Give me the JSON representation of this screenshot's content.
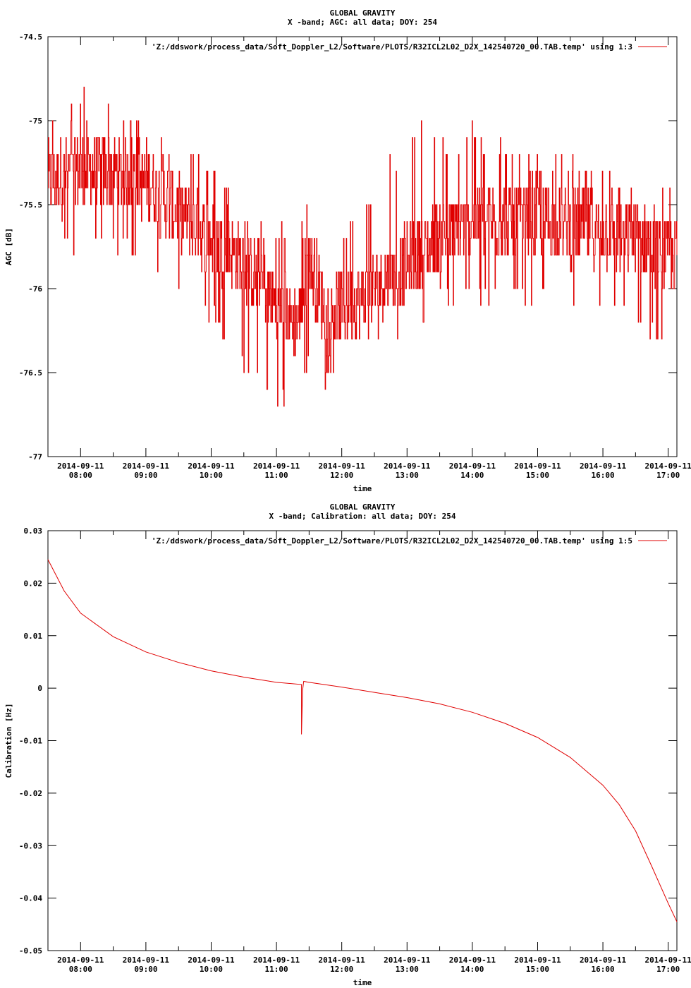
{
  "colors": {
    "series": "#e00000",
    "axes": "#000000",
    "background": "#ffffff"
  },
  "chart_data": [
    {
      "type": "line",
      "title": "GLOBAL GRAVITY",
      "subtitle": "X -band; AGC: all data; DOY: 254",
      "xlabel": "time",
      "ylabel": "AGC [dB]",
      "ylim": [
        -77,
        -74.5
      ],
      "yticks": [
        -74.5,
        -75,
        -75.5,
        -76,
        -76.5,
        -77
      ],
      "ytick_labels": [
        "-74.5",
        "-75",
        "-75.5",
        "-76",
        "-76.5",
        "-77"
      ],
      "xlim": [
        "07:30",
        "17:08"
      ],
      "xticks": [
        "08:00",
        "09:00",
        "10:00",
        "11:00",
        "12:00",
        "13:00",
        "14:00",
        "15:00",
        "16:00",
        "17:00"
      ],
      "xtick_dates": [
        "2014-09-11",
        "2014-09-11",
        "2014-09-11",
        "2014-09-11",
        "2014-09-11",
        "2014-09-11",
        "2014-09-11",
        "2014-09-11",
        "2014-09-11",
        "2014-09-11"
      ],
      "grid": false,
      "legend_position": "top-right",
      "legend_label": "'Z:/ddswork/process_data/Soft_Doppler_L2/Software/PLOTS/R32ICL2L02_D2X_142540720_00.TAB.temp' using 1:3",
      "series": [
        {
          "name": "'Z:/ddswork/process_data/Soft_Doppler_L2/Software/PLOTS/R32ICL2L02_D2X_142540720_00.TAB.temp' using 1:3",
          "x": [
            "07:30",
            "08:00",
            "08:30",
            "09:00",
            "09:30",
            "10:00",
            "10:30",
            "11:00",
            "11:20",
            "11:30",
            "11:45",
            "12:00",
            "12:30",
            "13:00",
            "13:30",
            "14:00",
            "14:30",
            "15:00",
            "15:30",
            "16:00",
            "16:30",
            "17:00",
            "17:08"
          ],
          "y": [
            -75.35,
            -75.3,
            -75.3,
            -75.35,
            -75.55,
            -75.7,
            -75.85,
            -76.1,
            -76.2,
            -75.8,
            -76.15,
            -76.1,
            -76.0,
            -75.85,
            -75.7,
            -75.6,
            -75.6,
            -75.6,
            -75.65,
            -75.65,
            -75.7,
            -75.8,
            -75.8
          ],
          "min": [
            -75.8,
            -75.8,
            -75.8,
            -75.9,
            -76.0,
            -76.2,
            -76.5,
            -76.8,
            -76.7,
            -76.5,
            -76.6,
            -76.5,
            -76.3,
            -76.5,
            -76.1,
            -76.1,
            -76.1,
            -76.1,
            -76.2,
            -76.2,
            -76.3,
            -76.4,
            -76.3
          ],
          "max": [
            -75.0,
            -74.8,
            -74.9,
            -75.0,
            -75.1,
            -75.2,
            -75.5,
            -75.6,
            -75.7,
            -75.4,
            -75.8,
            -75.6,
            -75.4,
            -75.0,
            -75.1,
            -75.0,
            -75.1,
            -75.2,
            -75.2,
            -75.2,
            -75.4,
            -75.3,
            -75.5
          ]
        }
      ]
    },
    {
      "type": "line",
      "title": "GLOBAL GRAVITY",
      "subtitle": "X -band; Calibration: all data; DOY: 254",
      "xlabel": "time",
      "ylabel": "Calibration [Hz]",
      "ylim": [
        -0.05,
        0.03
      ],
      "yticks": [
        0.03,
        0.02,
        0.01,
        0,
        -0.01,
        -0.02,
        -0.03,
        -0.04,
        -0.05
      ],
      "ytick_labels": [
        "0.03",
        "0.02",
        "0.01",
        "0",
        "-0.01",
        "-0.02",
        "-0.03",
        "-0.04",
        "-0.05"
      ],
      "xlim": [
        "07:30",
        "17:08"
      ],
      "xticks": [
        "08:00",
        "09:00",
        "10:00",
        "11:00",
        "12:00",
        "13:00",
        "14:00",
        "15:00",
        "16:00",
        "17:00"
      ],
      "xtick_dates": [
        "2014-09-11",
        "2014-09-11",
        "2014-09-11",
        "2014-09-11",
        "2014-09-11",
        "2014-09-11",
        "2014-09-11",
        "2014-09-11",
        "2014-09-11",
        "2014-09-11"
      ],
      "grid": false,
      "legend_position": "top-right",
      "legend_label": "'Z:/ddswork/process_data/Soft_Doppler_L2/Software/PLOTS/R32ICL2L02_D2X_142540720_00.TAB.temp' using 1:5",
      "series": [
        {
          "name": "'Z:/ddswork/process_data/Soft_Doppler_L2/Software/PLOTS/R32ICL2L02_D2X_142540720_00.TAB.temp' using 1:5",
          "x": [
            "07:30",
            "07:45",
            "08:00",
            "08:30",
            "09:00",
            "09:30",
            "10:00",
            "10:30",
            "11:00",
            "11:23",
            "11:23",
            "11:24",
            "11:25",
            "11:30",
            "12:00",
            "12:30",
            "13:00",
            "13:30",
            "14:00",
            "14:30",
            "15:00",
            "15:30",
            "16:00",
            "16:15",
            "16:30",
            "16:45",
            "17:00",
            "17:08"
          ],
          "y": [
            0.0245,
            0.0185,
            0.0143,
            0.0098,
            0.0069,
            0.0049,
            0.0033,
            0.0021,
            0.0011,
            0.0007,
            -0.0088,
            -0.0005,
            0.0013,
            0.0011,
            0.0002,
            -0.0008,
            -0.0018,
            -0.003,
            -0.0046,
            -0.0067,
            -0.0094,
            -0.0132,
            -0.0185,
            -0.0222,
            -0.0272,
            -0.034,
            -0.041,
            -0.0445
          ]
        }
      ]
    }
  ]
}
